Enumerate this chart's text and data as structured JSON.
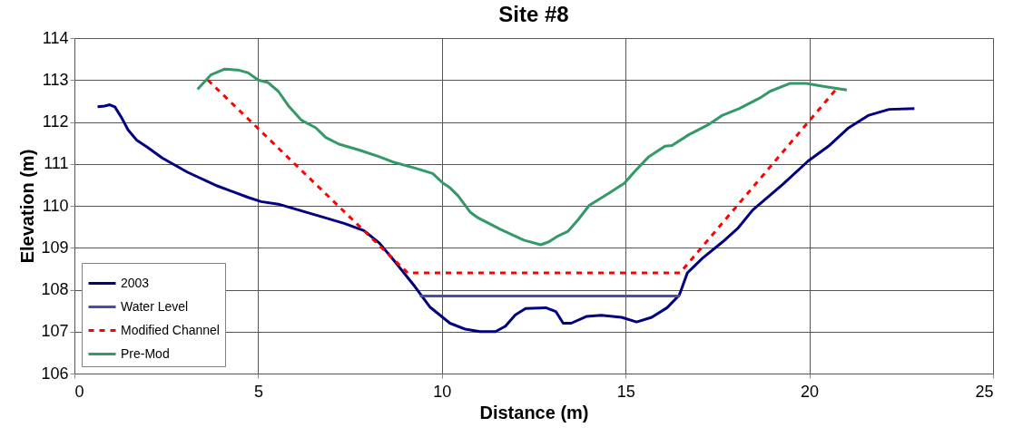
{
  "chart_data": {
    "type": "line",
    "title": "Site #8",
    "xlabel": "Distance (m)",
    "ylabel": "Elevation (m)",
    "xlim": [
      0,
      25
    ],
    "xticks": [
      0,
      5,
      10,
      15,
      20,
      25
    ],
    "ylim": [
      106,
      114
    ],
    "yticks": [
      106,
      107,
      108,
      109,
      110,
      111,
      112,
      113,
      114
    ],
    "grid": true,
    "legend": "bottom left",
    "marker": "none",
    "series": [
      {
        "name": "2003",
        "color": "#000080",
        "line_style": "solid",
        "x": [
          0.63,
          0.82,
          0.96,
          1.1,
          1.29,
          1.46,
          1.7,
          1.98,
          2.39,
          3.08,
          3.9,
          4.73,
          5.08,
          5.55,
          6.1,
          6.65,
          7.34,
          7.88,
          8.3,
          8.71,
          9.26,
          9.67,
          10.22,
          10.63,
          11.04,
          11.46,
          11.73,
          12.0,
          12.28,
          12.83,
          13.1,
          13.3,
          13.52,
          13.93,
          14.34,
          14.89,
          15.3,
          15.71,
          16.13,
          16.46,
          16.54,
          16.68,
          17.09,
          17.64,
          18.05,
          18.46,
          19.29,
          19.97,
          20.52,
          21.07,
          21.62,
          22.17,
          22.86
        ],
        "values": [
          112.36,
          112.38,
          112.41,
          112.36,
          112.09,
          111.81,
          111.56,
          111.4,
          111.14,
          110.8,
          110.47,
          110.2,
          110.1,
          110.04,
          109.9,
          109.76,
          109.58,
          109.41,
          109.11,
          108.68,
          108.08,
          107.59,
          107.2,
          107.06,
          107.0,
          107.0,
          107.13,
          107.4,
          107.55,
          107.57,
          107.48,
          107.2,
          107.2,
          107.36,
          107.39,
          107.34,
          107.23,
          107.34,
          107.57,
          107.87,
          108.06,
          108.4,
          108.75,
          109.14,
          109.46,
          109.9,
          110.52,
          111.07,
          111.42,
          111.86,
          112.16,
          112.3,
          112.32
        ]
      },
      {
        "name": "Water Level",
        "color": "#4b4ba8",
        "line_style": "solid",
        "x": [
          9.4,
          16.48
        ],
        "values": [
          107.85,
          107.85
        ]
      },
      {
        "name": "Modified Channel",
        "color": "#ff0000",
        "line_style": "dashed",
        "x": [
          3.63,
          9.07,
          16.48,
          20.75
        ],
        "values": [
          113.0,
          108.4,
          108.4,
          112.8
        ]
      },
      {
        "name": "Pre-Mod",
        "color": "#339966",
        "line_style": "solid",
        "x": [
          3.35,
          3.71,
          4.09,
          4.45,
          4.73,
          5.0,
          5.27,
          5.55,
          5.82,
          6.18,
          6.57,
          6.84,
          7.2,
          7.75,
          8.3,
          8.65,
          9.31,
          9.75,
          10.03,
          10.22,
          10.44,
          10.77,
          10.99,
          11.59,
          12.23,
          12.69,
          12.91,
          13.16,
          13.43,
          13.71,
          14.01,
          14.53,
          14.97,
          15.25,
          15.63,
          16.07,
          16.26,
          16.73,
          17.28,
          17.64,
          18.1,
          18.65,
          18.93,
          19.48,
          19.92,
          20.38,
          20.74,
          21.02
        ],
        "values": [
          112.78,
          113.12,
          113.26,
          113.24,
          113.17,
          113.0,
          112.94,
          112.73,
          112.39,
          112.04,
          111.86,
          111.63,
          111.47,
          111.33,
          111.17,
          111.05,
          110.89,
          110.77,
          110.54,
          110.43,
          110.24,
          109.85,
          109.71,
          109.44,
          109.18,
          109.07,
          109.14,
          109.28,
          109.39,
          109.67,
          110.01,
          110.29,
          110.54,
          110.82,
          111.17,
          111.42,
          111.44,
          111.7,
          111.95,
          112.16,
          112.32,
          112.57,
          112.73,
          112.92,
          112.92,
          112.85,
          112.8,
          112.76
        ]
      }
    ]
  }
}
